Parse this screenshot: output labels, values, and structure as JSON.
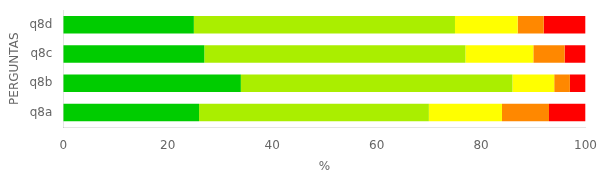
{
  "chart_data": {
    "type": "bar",
    "orientation": "horizontal",
    "stacked": true,
    "categories": [
      "q8a",
      "q8b",
      "q8c",
      "q8d"
    ],
    "series": [
      {
        "color": "#00CC00",
        "values": [
          26,
          34,
          27,
          25
        ]
      },
      {
        "color": "#AAEE00",
        "values": [
          44,
          52,
          50,
          50
        ]
      },
      {
        "color": "#FFFF00",
        "values": [
          14,
          8,
          13,
          12
        ]
      },
      {
        "color": "#FF8800",
        "values": [
          9,
          3,
          6,
          5
        ]
      },
      {
        "color": "#FF0000",
        "values": [
          7,
          3,
          4,
          8
        ]
      }
    ],
    "xlabel": "%",
    "ylabel": "PERGUNTAS",
    "xlim": [
      0,
      100
    ],
    "xticks": [
      0,
      20,
      40,
      60,
      80,
      100
    ],
    "grid": false
  }
}
